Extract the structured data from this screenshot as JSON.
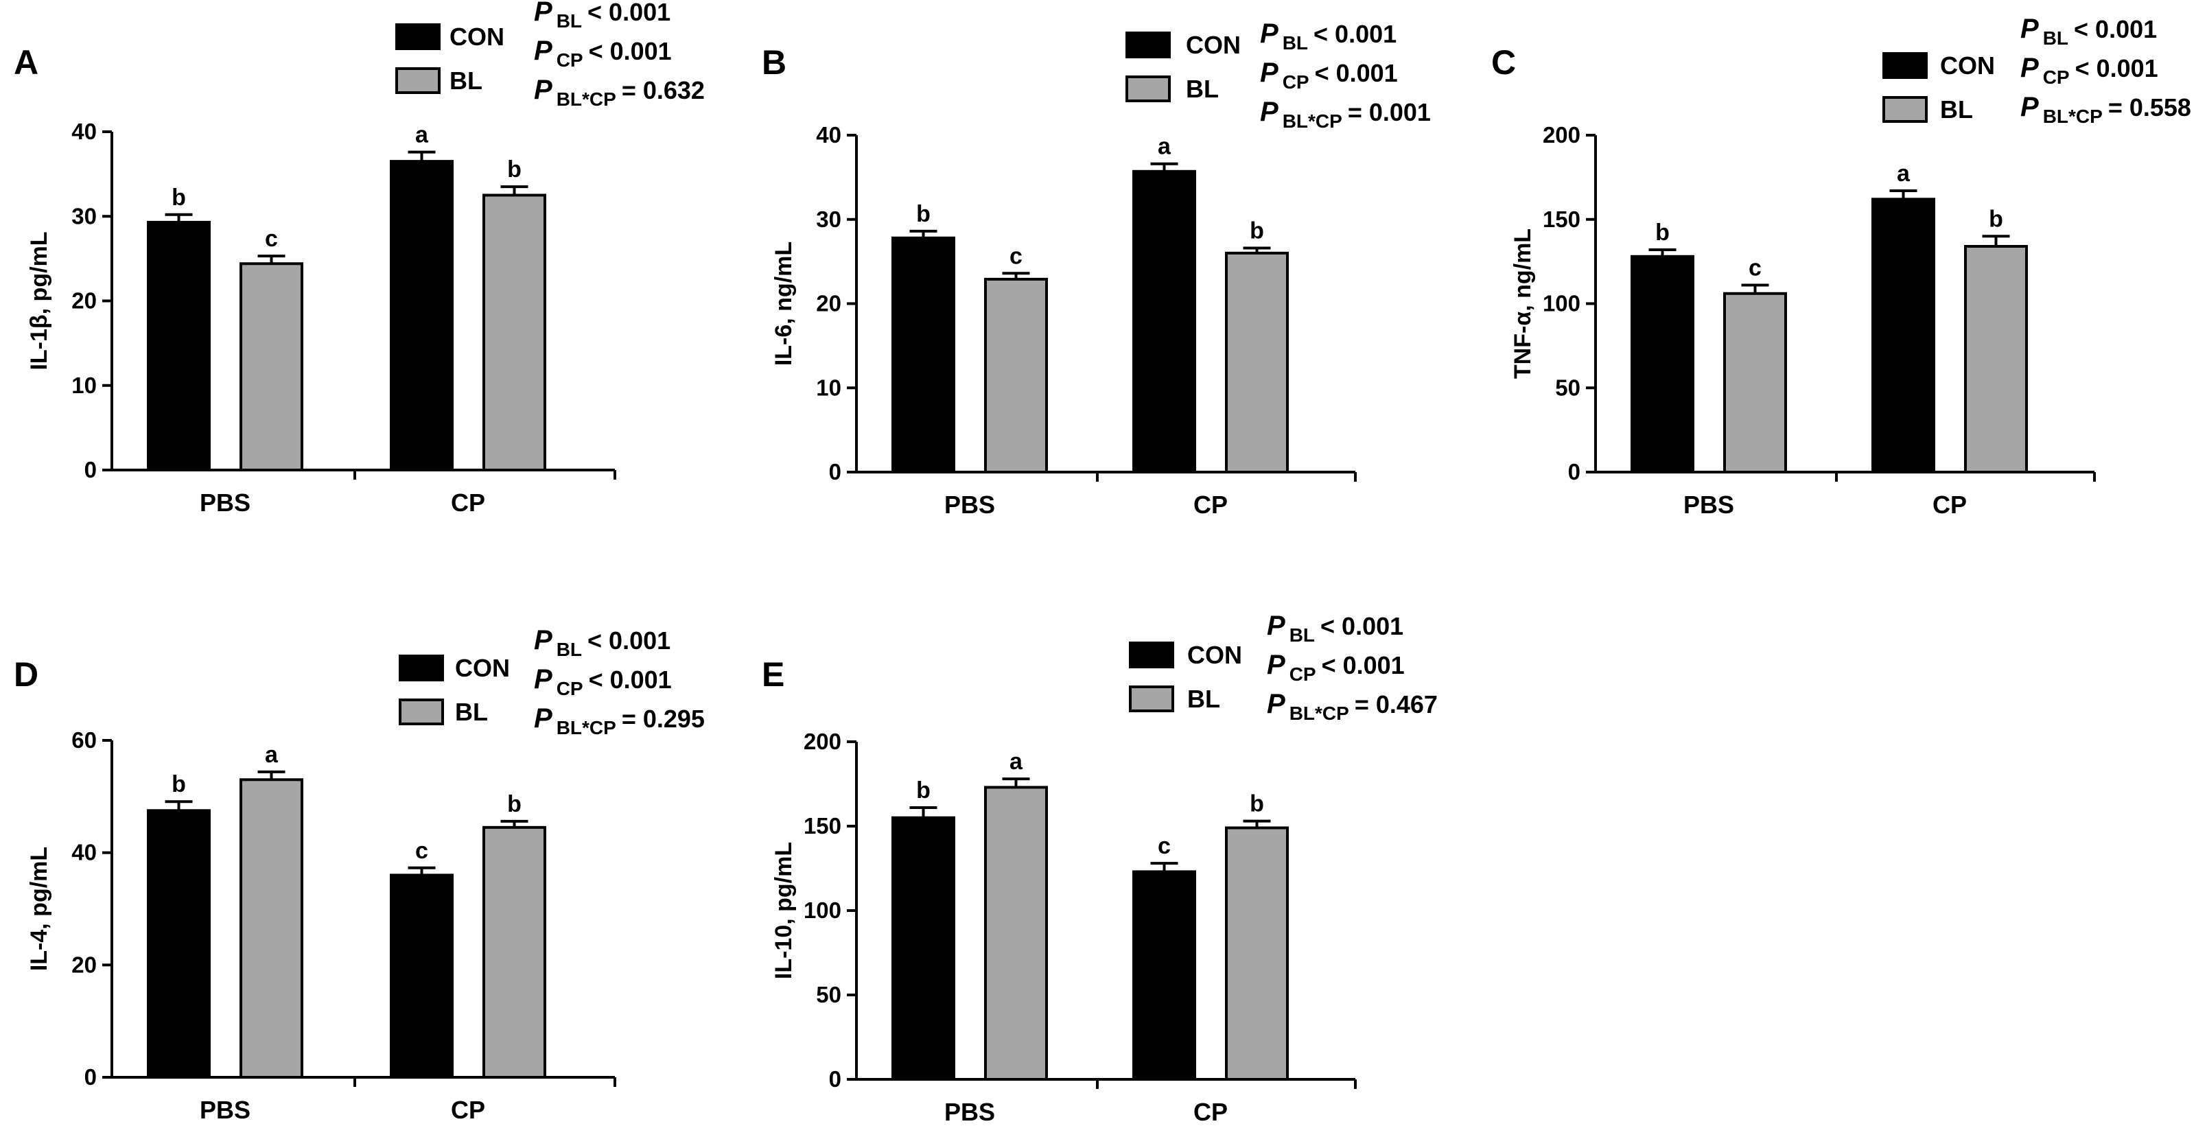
{
  "figure": {
    "colors": {
      "con": "#000000",
      "bl": "#a6a6a6",
      "axis": "#000000",
      "background": "#ffffff"
    },
    "legend_labels": {
      "con": "CON",
      "bl": "BL"
    }
  },
  "chart_data": [
    {
      "panel": "A",
      "type": "bar",
      "ylabel": "IL-1β, pg/mL",
      "categories": [
        "PBS",
        "CP"
      ],
      "ylim": [
        0,
        40
      ],
      "yticks": [
        0,
        10,
        20,
        30,
        40
      ],
      "series": [
        {
          "name": "CON",
          "values": [
            29.3,
            36.5
          ],
          "errors": [
            0.9,
            1.1
          ],
          "letters": [
            "b",
            "a"
          ]
        },
        {
          "name": "BL",
          "values": [
            24.4,
            32.5
          ],
          "errors": [
            0.9,
            1.0
          ],
          "letters": [
            "c",
            "b"
          ]
        }
      ],
      "stats": [
        {
          "main": "P",
          "sub": "BL",
          "text": "< 0.001"
        },
        {
          "main": "P",
          "sub": "CP",
          "text": "< 0.001"
        },
        {
          "main": "P",
          "sub": "BL*CP",
          "text": "= 0.632"
        }
      ]
    },
    {
      "panel": "B",
      "type": "bar",
      "ylabel": "IL-6, ng/mL",
      "categories": [
        "PBS",
        "CP"
      ],
      "ylim": [
        0,
        40
      ],
      "yticks": [
        0,
        10,
        20,
        30,
        40
      ],
      "series": [
        {
          "name": "CON",
          "values": [
            27.8,
            35.7
          ],
          "errors": [
            0.8,
            0.9
          ],
          "letters": [
            "b",
            "a"
          ]
        },
        {
          "name": "BL",
          "values": [
            22.9,
            26.0
          ],
          "errors": [
            0.7,
            0.6
          ],
          "letters": [
            "c",
            "b"
          ]
        }
      ],
      "stats": [
        {
          "main": "P",
          "sub": "BL",
          "text": "< 0.001"
        },
        {
          "main": "P",
          "sub": "CP",
          "text": "< 0.001"
        },
        {
          "main": "P",
          "sub": "BL*CP",
          "text": "= 0.001"
        }
      ]
    },
    {
      "panel": "C",
      "type": "bar",
      "ylabel": "TNF-α, ng/mL",
      "categories": [
        "PBS",
        "CP"
      ],
      "ylim": [
        0,
        200
      ],
      "yticks": [
        0,
        50,
        100,
        150,
        200
      ],
      "series": [
        {
          "name": "CON",
          "values": [
            128,
            162
          ],
          "errors": [
            4,
            5
          ],
          "letters": [
            "b",
            "a"
          ]
        },
        {
          "name": "BL",
          "values": [
            106,
            134
          ],
          "errors": [
            5,
            6
          ],
          "letters": [
            "c",
            "b"
          ]
        }
      ],
      "stats": [
        {
          "main": "P",
          "sub": "BL",
          "text": "< 0.001"
        },
        {
          "main": "P",
          "sub": "CP",
          "text": "< 0.001"
        },
        {
          "main": "P",
          "sub": "BL*CP",
          "text": "= 0.558"
        }
      ]
    },
    {
      "panel": "D",
      "type": "bar",
      "ylabel": "IL-4, pg/mL",
      "categories": [
        "PBS",
        "CP"
      ],
      "ylim": [
        0,
        60
      ],
      "yticks": [
        0,
        20,
        40,
        60
      ],
      "series": [
        {
          "name": "CON",
          "values": [
            47.5,
            36.0
          ],
          "errors": [
            1.6,
            1.3
          ],
          "letters": [
            "b",
            "c"
          ]
        },
        {
          "name": "BL",
          "values": [
            53.0,
            44.5
          ],
          "errors": [
            1.4,
            1.1
          ],
          "letters": [
            "a",
            "b"
          ]
        }
      ],
      "stats": [
        {
          "main": "P",
          "sub": "BL",
          "text": "< 0.001"
        },
        {
          "main": "P",
          "sub": "CP",
          "text": "< 0.001"
        },
        {
          "main": "P",
          "sub": "BL*CP",
          "text": "= 0.295"
        }
      ]
    },
    {
      "panel": "E",
      "type": "bar",
      "ylabel": "IL-10, pg/mL",
      "categories": [
        "PBS",
        "CP"
      ],
      "ylim": [
        0,
        200
      ],
      "yticks": [
        0,
        50,
        100,
        150,
        200
      ],
      "series": [
        {
          "name": "CON",
          "values": [
            155,
            123
          ],
          "errors": [
            6,
            5
          ],
          "letters": [
            "b",
            "c"
          ]
        },
        {
          "name": "BL",
          "values": [
            173,
            149
          ],
          "errors": [
            5,
            4
          ],
          "letters": [
            "a",
            "b"
          ]
        }
      ],
      "stats": [
        {
          "main": "P",
          "sub": "BL",
          "text": "< 0.001"
        },
        {
          "main": "P",
          "sub": "CP",
          "text": "< 0.001"
        },
        {
          "main": "P",
          "sub": "BL*CP",
          "text": "= 0.467"
        }
      ]
    }
  ]
}
